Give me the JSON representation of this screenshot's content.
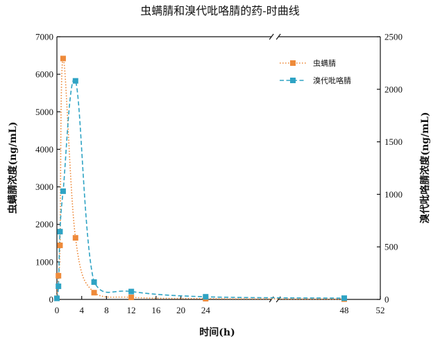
{
  "chart_data": {
    "type": "line",
    "title": "虫螨腈和溴代吡咯腈的药-时曲线",
    "xlabel": "时间(h)",
    "ylabel_left": "虫螨腈浓度(ng/mL)",
    "ylabel_right": "溴代吡咯腈浓度(ng/mL)",
    "x_ticks": [
      "0",
      "4",
      "8",
      "12",
      "16",
      "20",
      "24",
      "48",
      "52"
    ],
    "x_axis_break": "24–48",
    "y_left": {
      "lim": [
        0,
        7000
      ],
      "ticks": [
        "0",
        "1000",
        "2000",
        "3000",
        "4000",
        "5000",
        "6000",
        "7000"
      ]
    },
    "y_right": {
      "lim": [
        0,
        2500
      ],
      "ticks": [
        "0",
        "500",
        "1000",
        "1500",
        "2000",
        "2500"
      ]
    },
    "legend_position": "top-right",
    "grid": false,
    "series": [
      {
        "name": "虫螨腈",
        "axis": "left",
        "color": "#ee8a3a",
        "line_style": "dotted",
        "x": [
          0,
          0.25,
          0.5,
          1,
          3,
          6,
          12,
          24,
          48
        ],
        "y": [
          30,
          630,
          1440,
          6420,
          1640,
          180,
          55,
          20,
          8
        ]
      },
      {
        "name": "溴代吡咯腈",
        "axis": "right",
        "color": "#2ea3c4",
        "line_style": "dashed",
        "x": [
          0,
          0.25,
          0.5,
          1,
          3,
          6,
          12,
          24,
          48
        ],
        "y": [
          10,
          125,
          645,
          1030,
          2080,
          165,
          75,
          25,
          12
        ]
      }
    ]
  }
}
